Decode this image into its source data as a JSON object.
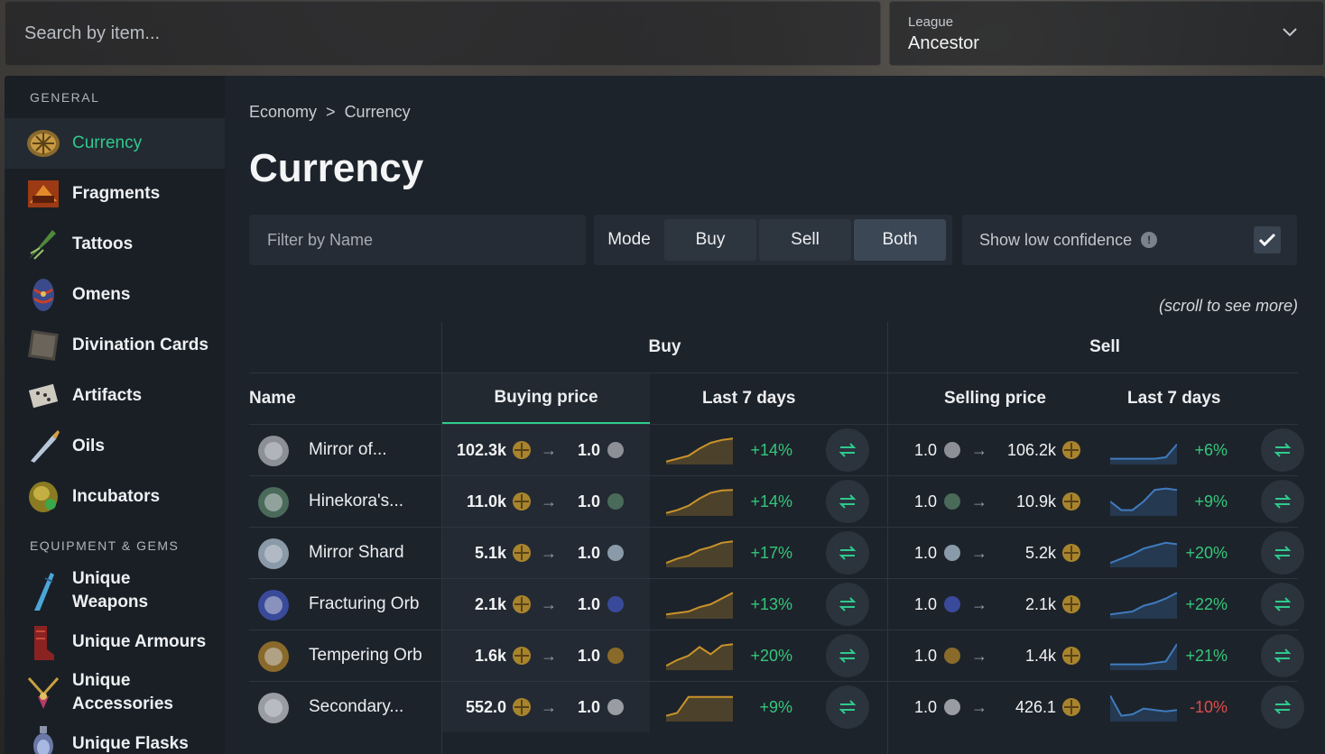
{
  "search": {
    "placeholder": "Search by item..."
  },
  "league": {
    "label": "League",
    "value": "Ancestor"
  },
  "sidebar": {
    "sections": [
      {
        "title": "GENERAL"
      },
      {
        "title": "EQUIPMENT & GEMS"
      }
    ],
    "items": [
      {
        "label": "Currency",
        "icon": "currency-icon"
      },
      {
        "label": "Fragments",
        "icon": "fragment-icon"
      },
      {
        "label": "Tattoos",
        "icon": "tattoo-icon"
      },
      {
        "label": "Omens",
        "icon": "omen-icon"
      },
      {
        "label": "Divination Cards",
        "icon": "divination-card-icon"
      },
      {
        "label": "Artifacts",
        "icon": "artifact-icon"
      },
      {
        "label": "Oils",
        "icon": "oil-icon"
      },
      {
        "label": "Incubators",
        "icon": "incubator-icon"
      },
      {
        "label": "Unique Weapons",
        "icon": "weapon-icon"
      },
      {
        "label": "Unique Armours",
        "icon": "armour-icon"
      },
      {
        "label": "Unique Accessories",
        "icon": "accessory-icon"
      },
      {
        "label": "Unique Flasks",
        "icon": "flask-icon"
      }
    ]
  },
  "breadcrumb": {
    "root": "Economy",
    "separator": ">",
    "current": "Currency"
  },
  "page": {
    "title": "Currency"
  },
  "controls": {
    "filter_placeholder": "Filter by Name",
    "mode_label": "Mode",
    "modes": [
      "Buy",
      "Sell",
      "Both"
    ],
    "active_mode": "Both",
    "low_confidence_label": "Show low confidence",
    "info_glyph": "!",
    "low_confidence_checked": true
  },
  "scroll_hint": "(scroll to see more)",
  "table": {
    "group_buy": "Buy",
    "group_sell": "Sell",
    "col_name": "Name",
    "col_buying_price": "Buying price",
    "col_last7_buy": "Last 7 days",
    "col_selling_price": "Selling price",
    "col_last7_sell": "Last 7 days",
    "arrow": "→",
    "rows": [
      {
        "name": "Mirror of...",
        "buy_price": "102.3k",
        "buy_qty": "1.0",
        "buy_change": "+14%",
        "buy_trend": [
          0.1,
          0.2,
          0.3,
          0.55,
          0.75,
          0.85,
          0.9
        ],
        "sell_qty": "1.0",
        "sell_price": "106.2k",
        "sell_change": "+6%",
        "sell_trend": [
          0.2,
          0.2,
          0.2,
          0.2,
          0.2,
          0.25,
          0.7
        ],
        "buy_dir": "pos",
        "sell_dir": "pos"
      },
      {
        "name": "Hinekora's...",
        "buy_price": "11.0k",
        "buy_qty": "1.0",
        "buy_change": "+14%",
        "buy_trend": [
          0.1,
          0.2,
          0.35,
          0.6,
          0.8,
          0.88,
          0.9
        ],
        "sell_qty": "1.0",
        "sell_price": "10.9k",
        "sell_change": "+9%",
        "sell_trend": [
          0.5,
          0.2,
          0.2,
          0.5,
          0.9,
          0.95,
          0.9
        ],
        "buy_dir": "pos",
        "sell_dir": "pos"
      },
      {
        "name": "Mirror Shard",
        "buy_price": "5.1k",
        "buy_qty": "1.0",
        "buy_change": "+17%",
        "buy_trend": [
          0.15,
          0.3,
          0.4,
          0.6,
          0.7,
          0.85,
          0.9
        ],
        "sell_qty": "1.0",
        "sell_price": "5.2k",
        "sell_change": "+20%",
        "sell_trend": [
          0.15,
          0.3,
          0.45,
          0.65,
          0.75,
          0.85,
          0.8
        ],
        "buy_dir": "pos",
        "sell_dir": "pos"
      },
      {
        "name": "Fracturing Orb",
        "buy_price": "2.1k",
        "buy_qty": "1.0",
        "buy_change": "+13%",
        "buy_trend": [
          0.15,
          0.2,
          0.25,
          0.4,
          0.5,
          0.7,
          0.9
        ],
        "sell_qty": "1.0",
        "sell_price": "2.1k",
        "sell_change": "+22%",
        "sell_trend": [
          0.15,
          0.2,
          0.25,
          0.45,
          0.55,
          0.7,
          0.9
        ],
        "buy_dir": "pos",
        "sell_dir": "pos"
      },
      {
        "name": "Tempering Orb",
        "buy_price": "1.6k",
        "buy_qty": "1.0",
        "buy_change": "+20%",
        "buy_trend": [
          0.15,
          0.35,
          0.5,
          0.8,
          0.55,
          0.85,
          0.9
        ],
        "sell_qty": "1.0",
        "sell_price": "1.4k",
        "sell_change": "+21%",
        "sell_trend": [
          0.2,
          0.2,
          0.2,
          0.2,
          0.25,
          0.3,
          0.9
        ],
        "buy_dir": "pos",
        "sell_dir": "pos"
      },
      {
        "name": "Secondary...",
        "buy_price": "552.0",
        "buy_qty": "1.0",
        "buy_change": "+9%",
        "buy_trend": [
          0.2,
          0.3,
          0.85,
          0.85,
          0.85,
          0.85,
          0.85
        ],
        "sell_qty": "1.0",
        "sell_price": "426.1",
        "sell_change": "-10%",
        "sell_trend": [
          0.9,
          0.2,
          0.25,
          0.45,
          0.4,
          0.35,
          0.4
        ],
        "buy_dir": "pos",
        "sell_dir": "neg"
      }
    ]
  },
  "colors": {
    "accent": "#2fca8c",
    "positive": "#34c77b",
    "negative": "#e04b4b",
    "buy_chart": "#c9932b",
    "sell_chart": "#3f7bbf"
  }
}
